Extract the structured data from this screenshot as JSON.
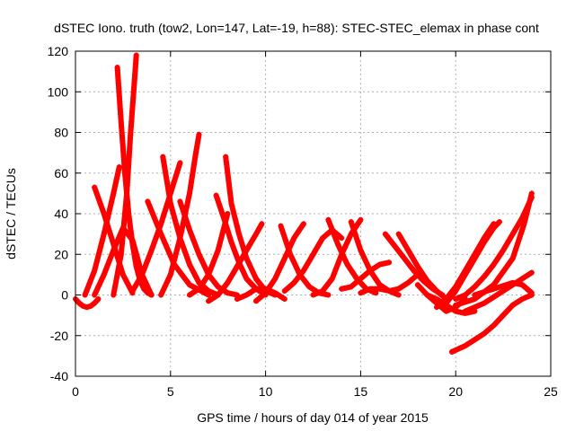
{
  "chart_data": {
    "type": "scatter",
    "title": "dSTEC Iono. truth (tow2, Lon=147, Lat=-19, h=88): STEC-STEC_elemax in phase cont",
    "xlabel": "GPS time / hours of day 014 of year 2015",
    "ylabel": "dSTEC  / TECUs",
    "xlim": [
      0,
      25
    ],
    "ylim": [
      -40,
      120
    ],
    "xticks": [
      0,
      5,
      10,
      15,
      20,
      25
    ],
    "yticks": [
      -40,
      -20,
      0,
      20,
      40,
      60,
      80,
      100,
      120
    ],
    "xtick_labels": [
      "0",
      "5",
      "10",
      "15",
      "20",
      "25"
    ],
    "ytick_labels": [
      "-40",
      "-20",
      "0",
      "20",
      "40",
      "60",
      "80",
      "100",
      "120"
    ],
    "grid": true,
    "legend": "none",
    "marker": "plus",
    "color": "#ff0000",
    "series": [
      {
        "x": [
          0.0,
          0.2,
          0.4,
          0.6,
          0.8,
          1.0,
          1.2
        ],
        "y": [
          -2,
          -4,
          -5.5,
          -6,
          -5.5,
          -4,
          -2
        ]
      },
      {
        "x": [
          1.0,
          1.5,
          2.0,
          2.5,
          3.0,
          3.5,
          4.0
        ],
        "y": [
          0,
          10,
          22,
          33,
          27,
          10,
          0
        ]
      },
      {
        "x": [
          0.5,
          1.0,
          1.5,
          2.0,
          2.3
        ],
        "y": [
          0,
          12,
          30,
          50,
          63
        ]
      },
      {
        "x": [
          1.0,
          1.5,
          2.0,
          2.5,
          3.0
        ],
        "y": [
          53,
          40,
          25,
          10,
          1
        ]
      },
      {
        "x": [
          2.2,
          2.4,
          2.6,
          2.8,
          3.0,
          3.2,
          3.4,
          3.6,
          3.8,
          4.0
        ],
        "y": [
          112,
          85,
          60,
          40,
          25,
          14,
          7,
          3,
          1,
          0
        ]
      },
      {
        "x": [
          2.0,
          2.4,
          2.7,
          2.9,
          3.1,
          3.2
        ],
        "y": [
          0,
          20,
          50,
          80,
          105,
          118
        ]
      },
      {
        "x": [
          3.0,
          3.5,
          4.0,
          4.5,
          5.0,
          5.5
        ],
        "y": [
          2,
          10,
          22,
          35,
          50,
          65
        ]
      },
      {
        "x": [
          3.8,
          4.5,
          5.2,
          6.0,
          7.0
        ],
        "y": [
          46,
          30,
          15,
          5,
          0
        ]
      },
      {
        "x": [
          4.6,
          5.0,
          5.5,
          6.0,
          6.5,
          7.0,
          7.5
        ],
        "y": [
          68,
          45,
          28,
          15,
          6,
          2,
          0
        ]
      },
      {
        "x": [
          4.5,
          5.0,
          5.5,
          6.0,
          6.3,
          6.5
        ],
        "y": [
          0,
          10,
          28,
          50,
          68,
          79
        ]
      },
      {
        "x": [
          5.5,
          6.0,
          6.5,
          7.0,
          7.5,
          8.0,
          8.5
        ],
        "y": [
          46,
          32,
          20,
          10,
          4,
          1,
          0
        ]
      },
      {
        "x": [
          6.0,
          6.5,
          7.0,
          7.5,
          8.0
        ],
        "y": [
          0,
          3,
          10,
          22,
          40
        ]
      },
      {
        "x": [
          7.4,
          7.8,
          8.2,
          8.6,
          9.0,
          9.5,
          10.0
        ],
        "y": [
          49,
          38,
          26,
          16,
          8,
          3,
          0
        ]
      },
      {
        "x": [
          7.9,
          8.2,
          8.6,
          9.0,
          9.5,
          10.0,
          10.5
        ],
        "y": [
          68,
          45,
          30,
          18,
          8,
          2,
          0
        ]
      },
      {
        "x": [
          7.0,
          7.5,
          8.0,
          8.5,
          9.0,
          9.5,
          9.8
        ],
        "y": [
          -3,
          0,
          6,
          14,
          22,
          30,
          35
        ]
      },
      {
        "x": [
          8.5,
          9.0,
          9.5,
          10.0,
          10.5,
          11.0
        ],
        "y": [
          -2,
          0,
          3,
          3,
          1,
          -2
        ]
      },
      {
        "x": [
          9.5,
          10.0,
          10.5,
          11.0,
          11.5,
          12.0
        ],
        "y": [
          -3,
          1,
          8,
          18,
          28,
          35
        ]
      },
      {
        "x": [
          10.8,
          11.3,
          11.8,
          12.3,
          12.8,
          13.3
        ],
        "y": [
          34,
          20,
          10,
          4,
          1,
          0
        ]
      },
      {
        "x": [
          11.0,
          11.5,
          12.0,
          12.5,
          13.0,
          13.5,
          14.0
        ],
        "y": [
          2,
          6,
          12,
          20,
          28,
          32,
          28
        ]
      },
      {
        "x": [
          12.5,
          13.0,
          13.5,
          14.0,
          14.5,
          15.0
        ],
        "y": [
          0,
          2,
          8,
          20,
          30,
          37
        ]
      },
      {
        "x": [
          13.3,
          13.8,
          14.3,
          14.8,
          15.3,
          15.8
        ],
        "y": [
          37,
          25,
          15,
          8,
          3,
          1
        ]
      },
      {
        "x": [
          14.5,
          15.0,
          15.5,
          16.0,
          16.5,
          17.0
        ],
        "y": [
          36,
          22,
          12,
          5,
          2,
          0
        ]
      },
      {
        "x": [
          14.0,
          14.5,
          15.0,
          15.5,
          16.0,
          16.5
        ],
        "y": [
          3,
          4,
          8,
          12,
          15,
          16
        ]
      },
      {
        "x": [
          15.0,
          15.5,
          16.0,
          16.5,
          17.0,
          17.5,
          18.0
        ],
        "y": [
          1,
          3,
          3,
          2,
          3,
          6,
          10
        ]
      },
      {
        "x": [
          16.3,
          16.8,
          17.3,
          17.8,
          18.3,
          18.8,
          19.3
        ],
        "y": [
          30,
          24,
          18,
          12,
          7,
          3,
          0
        ]
      },
      {
        "x": [
          17.0,
          17.5,
          18.0,
          18.5,
          19.0,
          19.5
        ],
        "y": [
          30,
          22,
          14,
          7,
          2,
          -2
        ]
      },
      {
        "x": [
          18.0,
          18.5,
          19.0,
          19.5,
          20.0,
          20.5
        ],
        "y": [
          5,
          0,
          -4,
          -8,
          -6,
          -2
        ]
      },
      {
        "x": [
          18.5,
          19.0,
          19.5,
          20.0,
          20.5,
          21.0
        ],
        "y": [
          0,
          -2,
          -5,
          -8,
          -9,
          -8
        ]
      },
      {
        "x": [
          19.5,
          20.0,
          20.5,
          21.0,
          21.5,
          22.0,
          22.3
        ],
        "y": [
          -4,
          2,
          10,
          18,
          26,
          33,
          36
        ]
      },
      {
        "x": [
          19.0,
          19.5,
          20.0,
          20.5,
          21.0,
          21.5,
          22.0
        ],
        "y": [
          -6,
          -2,
          4,
          12,
          20,
          28,
          35
        ]
      },
      {
        "x": [
          20.0,
          20.5,
          21.0,
          21.5,
          22.0,
          22.5,
          23.0,
          23.5,
          24.0
        ],
        "y": [
          -2,
          0,
          4,
          9,
          15,
          22,
          30,
          38,
          48
        ]
      },
      {
        "x": [
          20.0,
          21.0,
          22.0,
          23.0,
          23.6,
          24.0
        ],
        "y": [
          -5,
          -2,
          5,
          18,
          35,
          50
        ]
      },
      {
        "x": [
          20.5,
          21.0,
          21.5,
          22.0,
          22.5,
          23.0,
          23.5,
          24.0
        ],
        "y": [
          -8,
          -6,
          -4,
          -1,
          2,
          5,
          8,
          11
        ]
      },
      {
        "x": [
          21.0,
          22.0,
          23.0,
          23.5,
          24.0
        ],
        "y": [
          0,
          3,
          6,
          5,
          1
        ]
      },
      {
        "x": [
          19.8,
          20.5,
          21.0,
          21.5,
          22.0,
          22.5,
          23.0,
          23.5,
          24.0
        ],
        "y": [
          -28,
          -25,
          -22,
          -19,
          -15,
          -10,
          -5,
          -2,
          0
        ]
      }
    ]
  }
}
